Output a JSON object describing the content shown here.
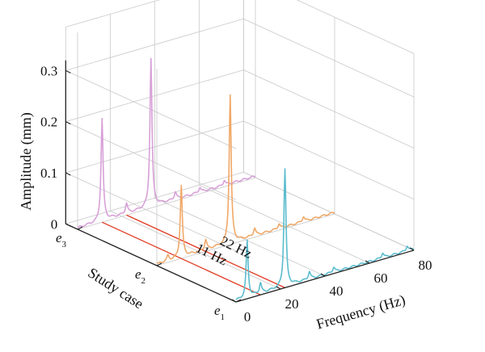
{
  "chart_data": {
    "type": "line",
    "subtype": "3d-waterfall",
    "xlabel": "Frequency (Hz)",
    "ylabel": "Study case",
    "zlabel": "Amplitude (mm)",
    "xlim": [
      0,
      80
    ],
    "zlim": [
      0,
      0.3
    ],
    "x_ticks": [
      "0",
      "20",
      "40",
      "60",
      "80"
    ],
    "z_ticks": [
      "0",
      "0.1",
      "0.2",
      "0.3"
    ],
    "categories": [
      "e1",
      "e2",
      "e3"
    ],
    "grid": true,
    "colors": {
      "e1": "#5bbccd",
      "e2": "#f0a868",
      "e3": "#d8a0d8",
      "annotation": "#e03a22"
    },
    "series": [
      {
        "case": "e1",
        "peaks": [
          {
            "x": 5,
            "y": 0.11
          },
          {
            "x": 11,
            "y": 0.02
          },
          {
            "x": 22,
            "y": 0.23
          },
          {
            "x": 33,
            "y": 0.015
          },
          {
            "x": 44,
            "y": 0.01
          },
          {
            "x": 66,
            "y": 0.01
          },
          {
            "x": 77,
            "y": 0.01
          }
        ]
      },
      {
        "case": "e2",
        "peaks": [
          {
            "x": 5,
            "y": 0.01
          },
          {
            "x": 11,
            "y": 0.14
          },
          {
            "x": 22,
            "y": 0.02
          },
          {
            "x": 33,
            "y": 0.29
          },
          {
            "x": 44,
            "y": 0.015
          },
          {
            "x": 55,
            "y": 0.01
          },
          {
            "x": 66,
            "y": 0.01
          }
        ]
      },
      {
        "case": "e3",
        "peaks": [
          {
            "x": 11,
            "y": 0.2
          },
          {
            "x": 22,
            "y": 0.02
          },
          {
            "x": 33,
            "y": 0.29
          },
          {
            "x": 44,
            "y": 0.015
          },
          {
            "x": 55,
            "y": 0.01
          },
          {
            "x": 66,
            "y": 0.01
          }
        ]
      }
    ],
    "annotations": [
      {
        "label": "22 Hz",
        "x": 22
      },
      {
        "label": "11 Hz",
        "x": 11
      }
    ]
  }
}
